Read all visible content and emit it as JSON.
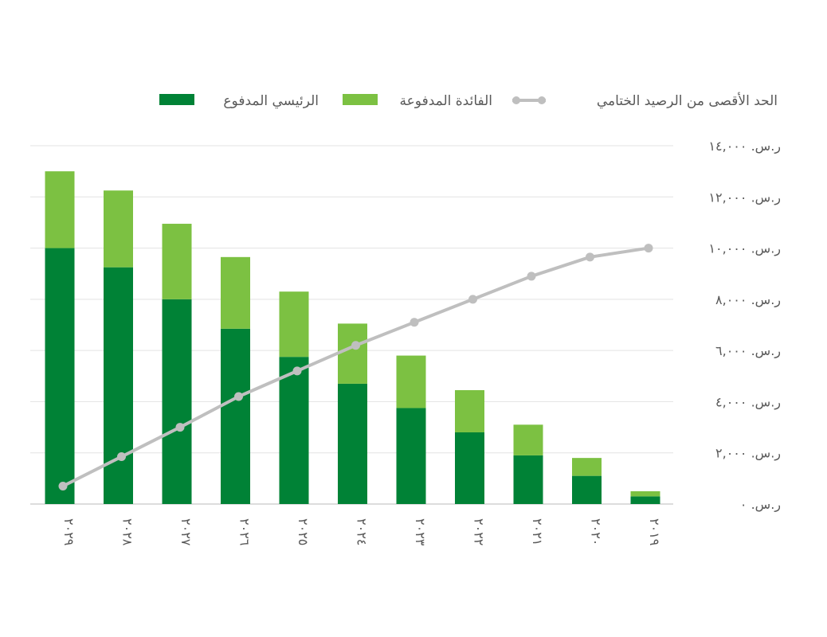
{
  "chart_data": {
    "type": "bar",
    "stacked": true,
    "title": "",
    "xlabel": "",
    "ylabel": "",
    "ylim": [
      0,
      14000
    ],
    "y_ticks": [
      0,
      2000,
      4000,
      6000,
      8000,
      10000,
      12000,
      14000
    ],
    "y_tick_labels": [
      "ر.س. ٠",
      "ر.س. ٢,٠٠٠",
      "ر.س. ٤,٠٠٠",
      "ر.س. ٦,٠٠٠",
      "ر.س. ٨,٠٠٠",
      "ر.س. ١٠,٠٠٠",
      "ر.س. ١٢,٠٠٠",
      "ر.س. ١٤,٠٠٠"
    ],
    "grid": true,
    "legend_position": "top",
    "categories": [
      "٢٠٢٩",
      "٢٠٢٨",
      "٢٠٢٧",
      "٢٠٢٦",
      "٢٠٢٥",
      "٢٠٢٤",
      "٢٠٢٣",
      "٢٠٢٢",
      "٢٠٢١",
      "٢٠٢٠",
      "٢٠١٩"
    ],
    "series": [
      {
        "name": "الرئيسي المدفوع",
        "kind": "bar",
        "color": "#008236",
        "values": [
          10000,
          9250,
          8000,
          6850,
          5750,
          4700,
          3750,
          2800,
          1900,
          1100,
          300
        ]
      },
      {
        "name": "الفائدة المدفوعة",
        "kind": "bar",
        "color": "#7cc142",
        "values": [
          3000,
          3000,
          2950,
          2800,
          2550,
          2350,
          2050,
          1650,
          1200,
          700,
          200
        ]
      },
      {
        "name": "الحد الأقصى من الرصيد الختامي",
        "kind": "line",
        "color": "#bfbfbf",
        "values": [
          700,
          1850,
          3000,
          4200,
          5200,
          6200,
          7100,
          8000,
          8900,
          9650,
          10000
        ]
      }
    ]
  }
}
